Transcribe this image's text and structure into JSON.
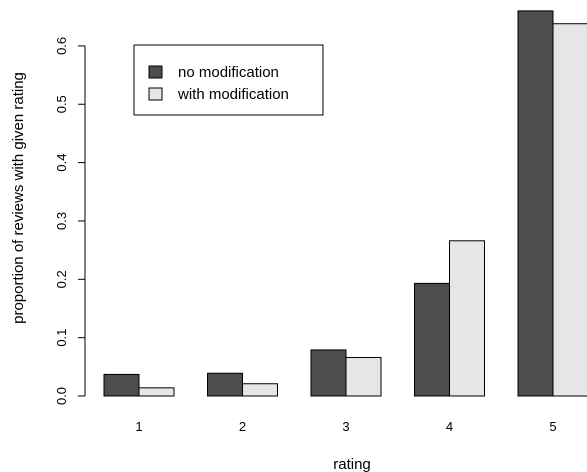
{
  "chart_data": {
    "type": "bar",
    "title": "",
    "xlabel": "rating",
    "ylabel": "proportion of reviews with given rating",
    "categories": [
      "1",
      "2",
      "3",
      "4",
      "5"
    ],
    "ylim": [
      0,
      0.65
    ],
    "yticks": [
      0.0,
      0.1,
      0.2,
      0.3,
      0.4,
      0.5,
      0.6
    ],
    "ytick_labels": [
      "0.0",
      "0.1",
      "0.2",
      "0.3",
      "0.4",
      "0.5",
      "0.6"
    ],
    "grid": false,
    "legend_position": "top-left",
    "series": [
      {
        "name": "no modification",
        "color": "#4d4d4d",
        "values": [
          0.037,
          0.039,
          0.079,
          0.193,
          0.66
        ]
      },
      {
        "name": "with modification",
        "color": "#e6e6e6",
        "values": [
          0.014,
          0.021,
          0.066,
          0.266,
          0.638
        ]
      }
    ]
  }
}
